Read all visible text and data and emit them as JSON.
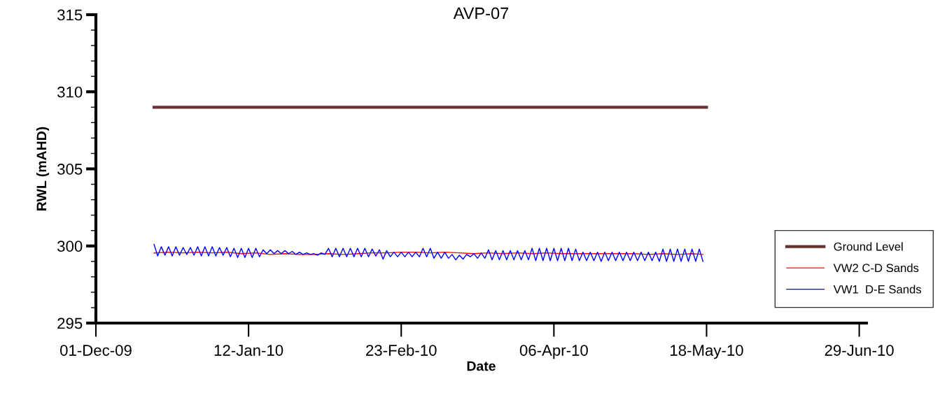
{
  "chart_data": {
    "type": "line",
    "title": "AVP-07",
    "xlabel": "Date",
    "ylabel": "RWL (mAHD)",
    "xlim": [
      "2009-12-01",
      "2010-07-01"
    ],
    "ylim": [
      295,
      315
    ],
    "xticks": [
      {
        "value": "2009-12-01",
        "label": "01-Dec-09"
      },
      {
        "value": "2010-01-12",
        "label": "12-Jan-10"
      },
      {
        "value": "2010-02-23",
        "label": "23-Feb-10"
      },
      {
        "value": "2010-04-06",
        "label": "06-Apr-10"
      },
      {
        "value": "2010-05-18",
        "label": "18-May-10"
      },
      {
        "value": "2010-06-29",
        "label": "29-Jun-10"
      }
    ],
    "yticks": [
      295,
      {
        "value": 296,
        "label": null
      },
      {
        "value": 297,
        "label": null
      },
      {
        "value": 298,
        "label": null
      },
      {
        "value": 299,
        "label": null
      },
      300,
      {
        "value": 301,
        "label": null
      },
      {
        "value": 302,
        "label": null
      },
      {
        "value": 303,
        "label": null
      },
      {
        "value": 304,
        "label": null
      },
      305,
      {
        "value": 306,
        "label": null
      },
      {
        "value": 307,
        "label": null
      },
      {
        "value": 308,
        "label": null
      },
      {
        "value": 309,
        "label": null
      },
      310,
      {
        "value": 311,
        "label": null
      },
      {
        "value": 312,
        "label": null
      },
      {
        "value": 313,
        "label": null
      },
      {
        "value": 314,
        "label": null
      },
      315
    ],
    "grid": false,
    "legend": "bottom right",
    "marker": "none",
    "line_style": "solid",
    "series": [
      {
        "name": "Ground Level",
        "color": "#663333",
        "x": [
          "2009-12-17",
          "2010-05-18"
        ],
        "values": [
          309,
          309
        ]
      },
      {
        "name": "VW2 C-D Sands",
        "color": "#ff0000",
        "x": [
          "2009-12-17",
          "2009-12-21",
          "2009-12-25",
          "2009-12-29",
          "2010-01-02",
          "2010-01-06",
          "2010-01-10",
          "2010-01-14",
          "2010-01-18",
          "2010-01-22",
          "2010-01-26",
          "2010-01-30",
          "2010-02-03",
          "2010-02-07",
          "2010-02-11",
          "2010-02-15",
          "2010-02-19",
          "2010-02-23",
          "2010-02-27",
          "2010-03-03",
          "2010-03-07",
          "2010-03-11",
          "2010-03-15",
          "2010-03-19",
          "2010-03-23",
          "2010-03-27",
          "2010-03-31",
          "2010-04-04",
          "2010-04-08",
          "2010-04-12",
          "2010-04-16",
          "2010-04-20",
          "2010-04-24",
          "2010-04-28",
          "2010-05-02",
          "2010-05-06",
          "2010-05-10",
          "2010-05-14",
          "2010-05-17"
        ],
        "values": [
          299.55,
          299.6,
          299.55,
          299.6,
          299.55,
          299.6,
          299.5,
          299.55,
          299.45,
          299.5,
          299.45,
          299.45,
          299.5,
          299.45,
          299.5,
          299.55,
          299.55,
          299.6,
          299.6,
          299.55,
          299.6,
          299.55,
          299.5,
          299.55,
          299.5,
          299.55,
          299.5,
          299.55,
          299.5,
          299.5,
          299.5,
          299.5,
          299.5,
          299.5,
          299.45,
          299.5,
          299.45,
          299.5,
          299.45
        ]
      },
      {
        "name": "VW1  D-E Sands",
        "color": "#0000ff",
        "x": [
          "2009-12-17",
          "2009-12-18",
          "2009-12-19",
          "2009-12-20",
          "2009-12-21",
          "2009-12-22",
          "2009-12-23",
          "2009-12-24",
          "2009-12-25",
          "2009-12-26",
          "2009-12-27",
          "2009-12-28",
          "2009-12-29",
          "2009-12-30",
          "2009-12-31",
          "2010-01-01",
          "2010-01-02",
          "2010-01-03",
          "2010-01-04",
          "2010-01-05",
          "2010-01-06",
          "2010-01-07",
          "2010-01-08",
          "2010-01-09",
          "2010-01-10",
          "2010-01-11",
          "2010-01-12",
          "2010-01-13",
          "2010-01-14",
          "2010-01-15",
          "2010-01-16",
          "2010-01-17",
          "2010-01-18",
          "2010-01-19",
          "2010-01-20",
          "2010-01-21",
          "2010-01-22",
          "2010-01-23",
          "2010-01-24",
          "2010-01-25",
          "2010-01-26",
          "2010-01-27",
          "2010-01-28",
          "2010-01-29",
          "2010-01-30",
          "2010-01-31",
          "2010-02-01",
          "2010-02-02",
          "2010-02-03",
          "2010-02-04",
          "2010-02-05",
          "2010-02-06",
          "2010-02-07",
          "2010-02-08",
          "2010-02-09",
          "2010-02-10",
          "2010-02-11",
          "2010-02-12",
          "2010-02-13",
          "2010-02-14",
          "2010-02-15",
          "2010-02-16",
          "2010-02-17",
          "2010-02-18",
          "2010-02-19",
          "2010-02-20",
          "2010-02-21",
          "2010-02-22",
          "2010-02-23",
          "2010-02-24",
          "2010-02-25",
          "2010-02-26",
          "2010-02-27",
          "2010-02-28",
          "2010-03-01",
          "2010-03-02",
          "2010-03-03",
          "2010-03-04",
          "2010-03-05",
          "2010-03-06",
          "2010-03-07",
          "2010-03-08",
          "2010-03-09",
          "2010-03-10",
          "2010-03-11",
          "2010-03-12",
          "2010-03-13",
          "2010-03-14",
          "2010-03-15",
          "2010-03-16",
          "2010-03-17",
          "2010-03-18",
          "2010-03-19",
          "2010-03-20",
          "2010-03-21",
          "2010-03-22",
          "2010-03-23",
          "2010-03-24",
          "2010-03-25",
          "2010-03-26",
          "2010-03-27",
          "2010-03-28",
          "2010-03-29",
          "2010-03-30",
          "2010-03-31",
          "2010-04-01",
          "2010-04-02",
          "2010-04-03",
          "2010-04-04",
          "2010-04-05",
          "2010-04-06",
          "2010-04-07",
          "2010-04-08",
          "2010-04-09",
          "2010-04-10",
          "2010-04-11",
          "2010-04-12",
          "2010-04-13",
          "2010-04-14",
          "2010-04-15",
          "2010-04-16",
          "2010-04-17",
          "2010-04-18",
          "2010-04-19",
          "2010-04-20",
          "2010-04-21",
          "2010-04-22",
          "2010-04-23",
          "2010-04-24",
          "2010-04-25",
          "2010-04-26",
          "2010-04-27",
          "2010-04-28",
          "2010-04-29",
          "2010-04-30",
          "2010-05-01",
          "2010-05-02",
          "2010-05-03",
          "2010-05-04",
          "2010-05-05",
          "2010-05-06",
          "2010-05-07",
          "2010-05-08",
          "2010-05-09",
          "2010-05-10",
          "2010-05-11",
          "2010-05-12",
          "2010-05-13",
          "2010-05-14",
          "2010-05-15",
          "2010-05-16",
          "2010-05-17"
        ],
        "values": [
          300.1,
          299.35,
          299.95,
          299.4,
          299.95,
          299.35,
          299.95,
          299.4,
          299.9,
          299.45,
          299.9,
          299.4,
          299.95,
          299.35,
          299.95,
          299.35,
          299.95,
          299.35,
          299.9,
          299.4,
          299.9,
          299.3,
          299.85,
          299.25,
          299.85,
          299.25,
          299.85,
          299.25,
          299.85,
          299.3,
          299.75,
          299.5,
          299.75,
          299.5,
          299.7,
          299.5,
          299.7,
          299.5,
          299.65,
          299.45,
          299.6,
          299.45,
          299.55,
          299.45,
          299.5,
          299.4,
          299.55,
          299.45,
          299.85,
          299.3,
          299.85,
          299.3,
          299.85,
          299.3,
          299.85,
          299.3,
          299.85,
          299.3,
          299.85,
          299.3,
          299.8,
          299.35,
          299.75,
          299.15,
          299.7,
          299.3,
          299.6,
          299.3,
          299.6,
          299.3,
          299.6,
          299.3,
          299.6,
          299.3,
          299.85,
          299.3,
          299.85,
          299.2,
          299.6,
          299.2,
          299.6,
          299.2,
          299.45,
          299.1,
          299.4,
          299.15,
          299.45,
          299.3,
          299.5,
          299.2,
          299.55,
          299.2,
          299.75,
          299.1,
          299.7,
          299.1,
          299.7,
          299.1,
          299.7,
          299.1,
          299.7,
          299.1,
          299.7,
          299.1,
          299.85,
          299.05,
          299.85,
          299.05,
          299.85,
          299.05,
          299.85,
          299.05,
          299.85,
          299.05,
          299.85,
          299.05,
          299.8,
          299.05,
          299.6,
          299.05,
          299.6,
          299.05,
          299.6,
          299.0,
          299.6,
          299.05,
          299.6,
          299.05,
          299.6,
          299.05,
          299.6,
          299.05,
          299.6,
          299.05,
          299.6,
          299.05,
          299.6,
          299.05,
          299.6,
          299.0,
          299.8,
          299.0,
          299.8,
          299.0,
          299.8,
          299.0,
          299.8,
          299.0,
          299.8,
          299.0,
          299.8,
          299.0
        ]
      }
    ]
  }
}
